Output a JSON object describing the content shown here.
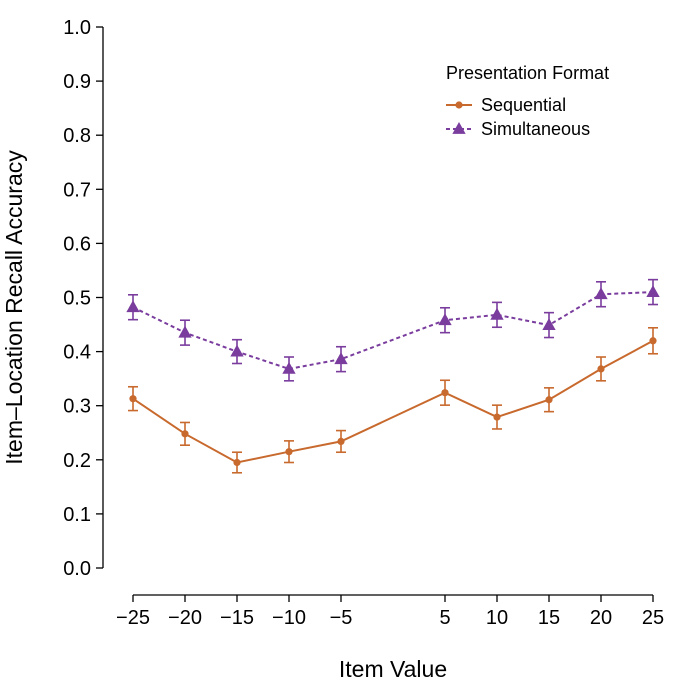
{
  "colors": {
    "sequential": "#c8692d",
    "simultaneous": "#7a3d9e",
    "axis": "#000000"
  },
  "chart_data": {
    "type": "line",
    "xlabel": "Item Value",
    "ylabel": "Item–Location Recall Accuracy",
    "ylim": [
      0.0,
      1.0
    ],
    "yticks": [
      0.0,
      0.1,
      0.2,
      0.3,
      0.4,
      0.5,
      0.6,
      0.7,
      0.8,
      0.9,
      1.0
    ],
    "ytick_labels": [
      "0.0",
      "0.1",
      "0.2",
      "0.3",
      "0.4",
      "0.5",
      "0.6",
      "0.7",
      "0.8",
      "0.9",
      "1.0"
    ],
    "x": [
      -25,
      -20,
      -15,
      -10,
      -5,
      5,
      10,
      15,
      20,
      25
    ],
    "xtick_labels": [
      "−25",
      "−20",
      "−15",
      "−10",
      "−5",
      "5",
      "10",
      "15",
      "20",
      "25"
    ],
    "legend": {
      "title": "Presentation Format",
      "position": "top-right"
    },
    "series": [
      {
        "name": "Sequential",
        "marker": "circle",
        "line_style": "solid",
        "values": [
          0.313,
          0.248,
          0.195,
          0.215,
          0.234,
          0.324,
          0.279,
          0.311,
          0.368,
          0.42
        ],
        "error": [
          0.022,
          0.021,
          0.019,
          0.02,
          0.02,
          0.023,
          0.022,
          0.022,
          0.022,
          0.024
        ]
      },
      {
        "name": "Simultaneous",
        "marker": "triangle",
        "line_style": "dashed",
        "values": [
          0.482,
          0.435,
          0.4,
          0.368,
          0.386,
          0.458,
          0.468,
          0.449,
          0.506,
          0.51
        ],
        "error": [
          0.023,
          0.023,
          0.022,
          0.022,
          0.023,
          0.023,
          0.023,
          0.023,
          0.023,
          0.023
        ]
      }
    ]
  }
}
